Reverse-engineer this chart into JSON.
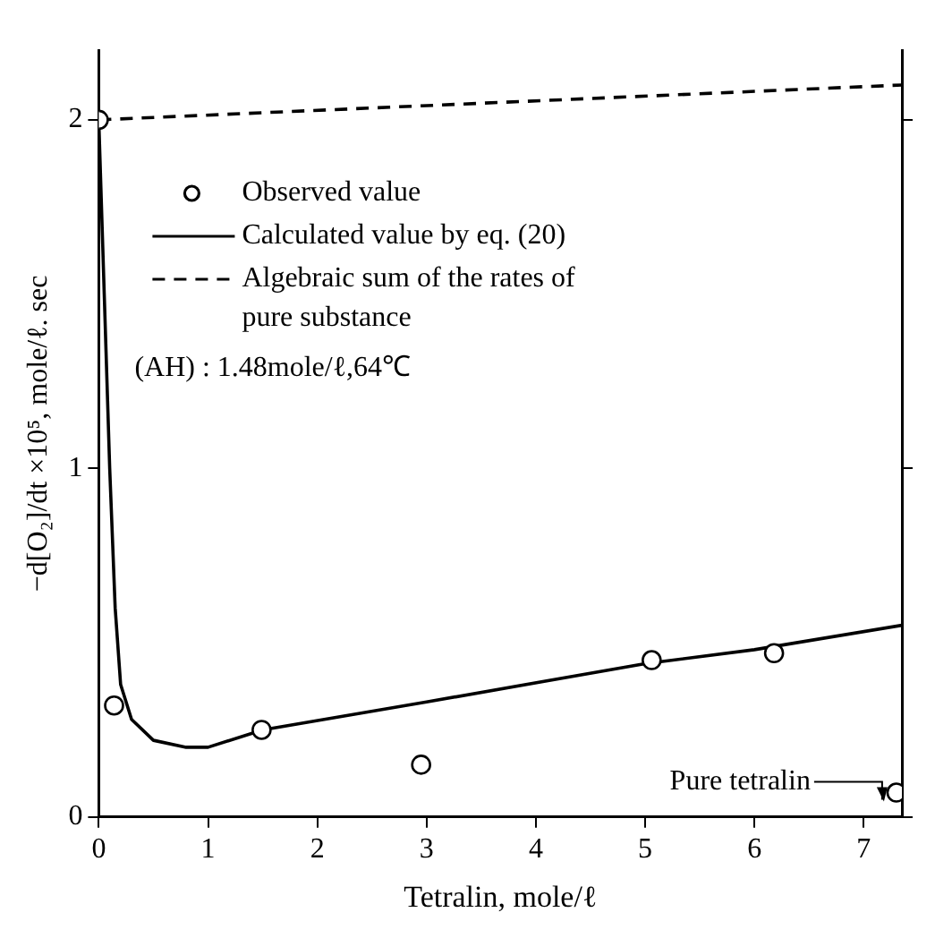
{
  "chart_data": {
    "type": "line",
    "xlabel": "Tetralin, mole/ℓ",
    "ylabel": "−d[O₂]/dt ×10⁵, mole/ℓ. sec",
    "xlim": [
      0,
      7.35
    ],
    "ylim": [
      0,
      2.2
    ],
    "xticks": [
      0,
      1,
      2,
      3,
      4,
      5,
      6,
      7
    ],
    "yticks": [
      0,
      1,
      2
    ],
    "grid": false,
    "legend": "top left",
    "series": [
      {
        "name": "Observed value",
        "type": "scatter",
        "marker": "circle",
        "color": "#000000",
        "x": [
          0,
          0.14,
          1.49,
          2.95,
          5.06,
          6.18,
          7.3
        ],
        "values": [
          2.0,
          0.32,
          0.25,
          0.15,
          0.45,
          0.47,
          0.07
        ]
      },
      {
        "name": "Calculated value by eq. (20)",
        "type": "line",
        "line_style": "solid",
        "marker": "none",
        "color": "#000000",
        "x": [
          0,
          0.05,
          0.1,
          0.15,
          0.2,
          0.3,
          0.5,
          0.8,
          1.0,
          1.5,
          3,
          5,
          6,
          7.35
        ],
        "values": [
          2.0,
          1.5,
          1.0,
          0.6,
          0.38,
          0.28,
          0.22,
          0.2,
          0.2,
          0.25,
          0.33,
          0.44,
          0.48,
          0.55
        ]
      },
      {
        "name": "Algebraic sum of the rates of pure substance",
        "type": "line",
        "line_style": "dashed",
        "marker": "none",
        "color": "#000000",
        "x": [
          0,
          7.35
        ],
        "values": [
          2.0,
          2.1
        ]
      }
    ],
    "annotations": [
      "(AH) : 1.48mole/ℓ,64℃",
      {
        "text": "Pure tetralin",
        "x": 7.3,
        "y": 0.07
      }
    ]
  }
}
